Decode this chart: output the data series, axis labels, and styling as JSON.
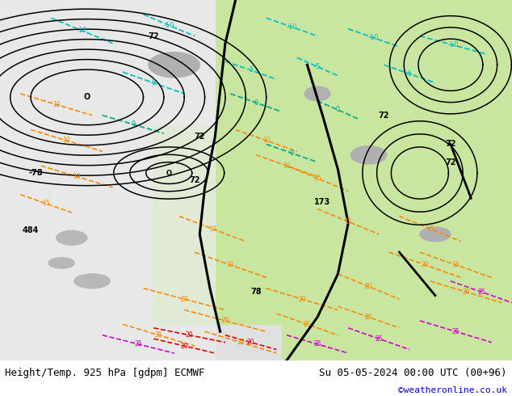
{
  "title_left": "Height/Temp. 925 hPa [gdpm] ECMWF",
  "title_right": "Su 05-05-2024 00:00 UTC (00+96)",
  "watermark": "©weatheronline.co.uk",
  "fig_width": 6.34,
  "fig_height": 4.9,
  "dpi": 100,
  "watermark_color": "#0000cc",
  "title_fontsize": 9
}
